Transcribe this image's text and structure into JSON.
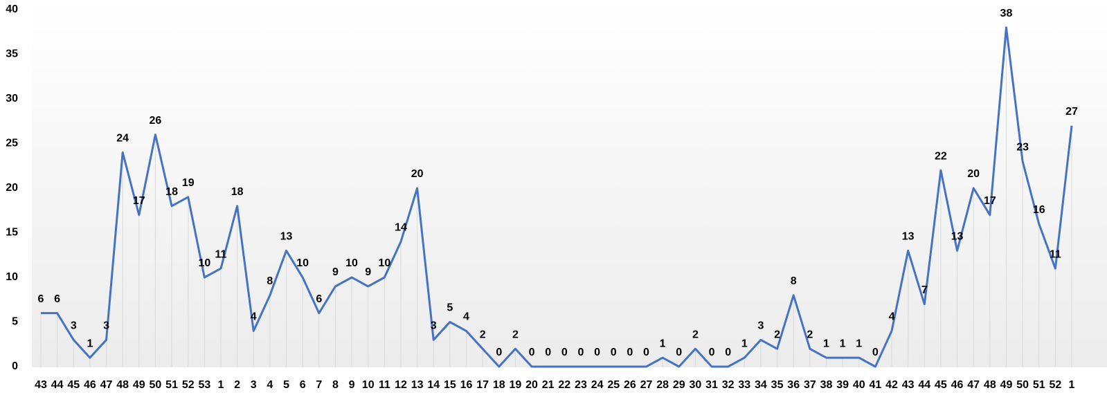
{
  "chart_data": {
    "type": "line",
    "categories": [
      "43",
      "44",
      "45",
      "46",
      "47",
      "48",
      "49",
      "50",
      "51",
      "52",
      "53",
      "1",
      "2",
      "3",
      "4",
      "5",
      "6",
      "7",
      "8",
      "9",
      "10",
      "11",
      "12",
      "13",
      "14",
      "15",
      "16",
      "17",
      "18",
      "19",
      "20",
      "21",
      "22",
      "23",
      "24",
      "25",
      "26",
      "27",
      "28",
      "29",
      "30",
      "31",
      "32",
      "33",
      "34",
      "35",
      "36",
      "37",
      "38",
      "39",
      "40",
      "41",
      "42",
      "43",
      "44",
      "45",
      "46",
      "47",
      "48",
      "49",
      "50",
      "51",
      "52",
      "1"
    ],
    "series": [
      {
        "color": "#4472c4",
        "values": [
          6,
          6,
          3,
          1,
          3,
          24,
          17,
          26,
          18,
          19,
          10,
          11,
          18,
          4,
          8,
          13,
          10,
          6,
          9,
          10,
          9,
          10,
          14,
          20,
          3,
          5,
          4,
          2,
          0,
          2,
          0,
          0,
          0,
          0,
          0,
          0,
          0,
          0,
          1,
          0,
          2,
          0,
          0,
          1,
          3,
          2,
          8,
          2,
          1,
          1,
          1,
          0,
          4,
          13,
          7,
          22,
          13,
          20,
          17,
          38,
          23,
          16,
          11,
          27
        ]
      }
    ],
    "ylim": [
      0,
      40
    ],
    "yticks": [
      0,
      5,
      10,
      15,
      20,
      25,
      30,
      35,
      40
    ]
  }
}
